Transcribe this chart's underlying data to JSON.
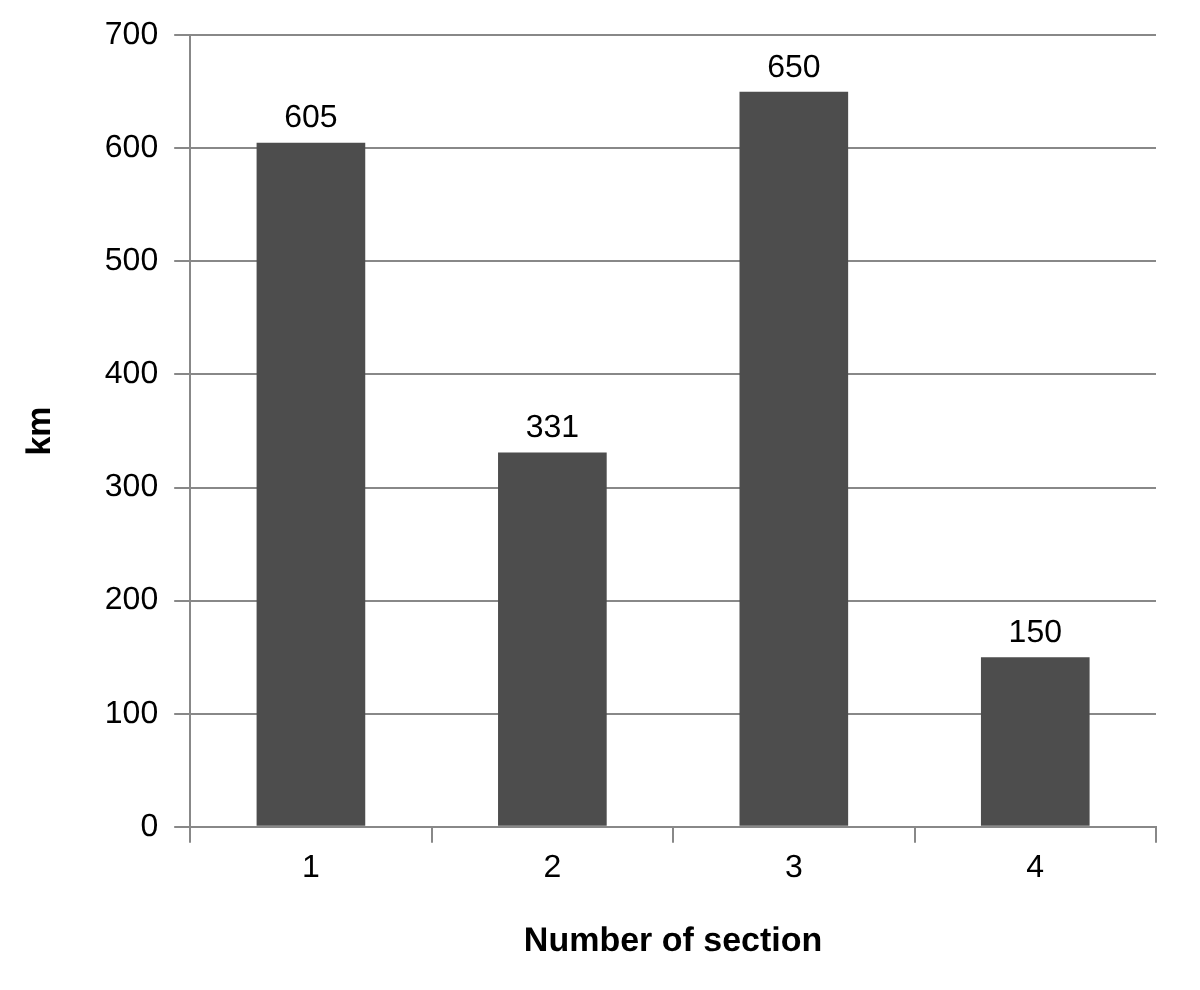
{
  "chart_data": {
    "type": "bar",
    "xlabel": "Number of section",
    "ylabel": "km",
    "categories": [
      "1",
      "2",
      "3",
      "4"
    ],
    "values": [
      605,
      331,
      650,
      150
    ],
    "color": "#4d4d4d",
    "ylim": [
      0,
      700
    ],
    "yticks": [
      0,
      100,
      200,
      300,
      400,
      500,
      600,
      700
    ],
    "grid": "y",
    "data_labels": true,
    "legend": false
  }
}
